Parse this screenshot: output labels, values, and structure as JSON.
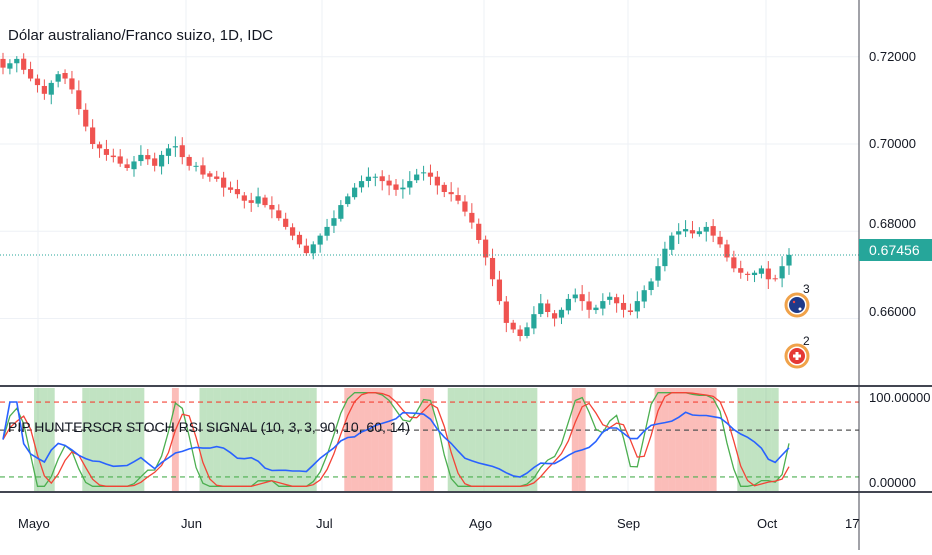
{
  "title": "Dólar australiano/Franco suizo, 1D, IDC",
  "indicator": {
    "label": "PIP HUNTERSCR STOCH RSI SIGNAL (10, 3, 3, 90, 10, 60, 14)",
    "axis_labels": [
      "100.00000",
      "0.00000"
    ]
  },
  "price_axis_labels": [
    "0.72000",
    "0.70000",
    "0.68000",
    "0.66000"
  ],
  "last_price": "0.67456",
  "time_axis_labels": [
    "Mayo",
    "Jun",
    "Jul",
    "Ago",
    "Sep",
    "Oct",
    "17"
  ],
  "events": [
    {
      "label": "3",
      "icon": "australia-flag-icon"
    },
    {
      "label": "2",
      "icon": "switzerland-flag-icon"
    }
  ],
  "colors": {
    "up": "#26a69a",
    "down": "#ef5350",
    "k_line": "#4caf50",
    "d_line": "#f44336",
    "rsi_line": "#2962ff",
    "buy_band": "#4caf50",
    "sell_band": "#f44336",
    "last_price": "#26a69a"
  },
  "chart_data": [
    {
      "type": "candlestick",
      "title": "Dólar australiano/Franco suizo, 1D, IDC",
      "ylim": [
        0.645,
        0.733
      ],
      "close_series": [
        0.7175,
        0.7185,
        0.7195,
        0.717,
        0.715,
        0.7135,
        0.7115,
        0.714,
        0.716,
        0.715,
        0.7125,
        0.708,
        0.704,
        0.7,
        0.699,
        0.6975,
        0.697,
        0.6955,
        0.6945,
        0.696,
        0.6975,
        0.6965,
        0.695,
        0.6975,
        0.699,
        0.6995,
        0.697,
        0.695,
        0.695,
        0.693,
        0.6925,
        0.692,
        0.69,
        0.6895,
        0.6885,
        0.687,
        0.6865,
        0.688,
        0.686,
        0.685,
        0.683,
        0.681,
        0.679,
        0.677,
        0.675,
        0.677,
        0.679,
        0.681,
        0.683,
        0.686,
        0.688,
        0.69,
        0.6915,
        0.6925,
        0.6925,
        0.6915,
        0.6905,
        0.6895,
        0.69,
        0.6915,
        0.693,
        0.6935,
        0.6925,
        0.6905,
        0.689,
        0.6885,
        0.687,
        0.6845,
        0.682,
        0.678,
        0.674,
        0.669,
        0.664,
        0.659,
        0.6575,
        0.656,
        0.658,
        0.661,
        0.6635,
        0.6615,
        0.66,
        0.662,
        0.6645,
        0.6655,
        0.664,
        0.662,
        0.6625,
        0.664,
        0.665,
        0.6635,
        0.662,
        0.6615,
        0.664,
        0.6665,
        0.6685,
        0.672,
        0.676,
        0.679,
        0.68,
        0.6805,
        0.6795,
        0.68,
        0.681,
        0.679,
        0.677,
        0.674,
        0.6715,
        0.6705,
        0.67,
        0.6705,
        0.6715,
        0.669,
        0.669,
        0.672,
        0.6746
      ],
      "last_price": 0.67456,
      "indicator": {
        "name": "PIP HUNTERSCR STOCH RSI SIGNAL (10, 3, 3, 90, 10, 60, 14)",
        "ylim": [
          -5,
          105
        ],
        "overbought": 90,
        "oversold": 10,
        "midline": 60
      }
    }
  ]
}
